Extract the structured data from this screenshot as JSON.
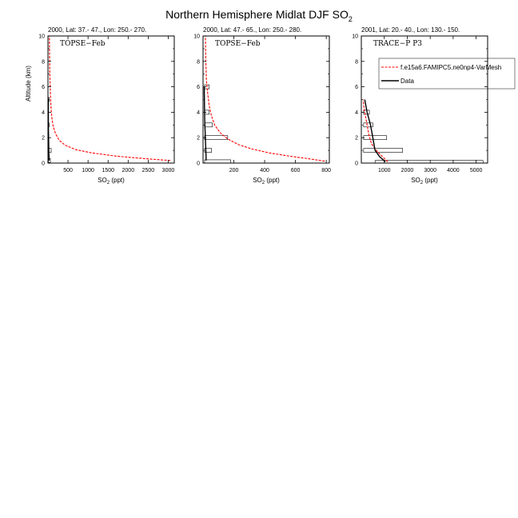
{
  "figure": {
    "title": "Northern Hemisphere Midlat DJF SO",
    "title_subscript": "2"
  },
  "chart_data": [
    {
      "type": "line",
      "subtitle": "2000, Lat: 37.- 47., Lon: 250.- 270.",
      "panel_label": "TOPSE−Feb",
      "xlabel": "SO",
      "xlabel_subscript": "2",
      "xlabel_unit": " (ppt)",
      "ylabel": "Altitude (km)",
      "xlim": [
        0,
        3150
      ],
      "ylim": [
        0,
        10
      ],
      "x_ticks": [
        500,
        1000,
        1500,
        2000,
        2500,
        3000
      ],
      "y_ticks": [
        0,
        2,
        4,
        6,
        8,
        10
      ],
      "series": [
        {
          "name": "f.e15a6.FAMIPC5.ne0np4-VarMesh",
          "color": "#ff0000",
          "style": "dashed",
          "x": [
            3050,
            2400,
            1700,
            1100,
            700,
            430,
            280,
            190,
            130,
            100,
            80,
            65,
            55,
            45,
            40,
            35
          ],
          "y": [
            0.2,
            0.35,
            0.55,
            0.8,
            1.05,
            1.4,
            1.8,
            2.3,
            2.9,
            3.5,
            4.2,
            5.0,
            6.0,
            7.0,
            8.5,
            10
          ]
        },
        {
          "name": "Data",
          "color": "#000000",
          "style": "solid",
          "x": [
            30,
            20,
            15,
            10,
            10
          ],
          "y": [
            0.2,
            1.0,
            2.0,
            3.0,
            5.0
          ]
        }
      ],
      "boxes": [
        {
          "y": 1.0,
          "x_low": 10,
          "x_high": 80
        },
        {
          "y": 0.2,
          "x_low": 10,
          "x_high": 60
        },
        {
          "y": 3.0,
          "x_low": 10,
          "x_high": 25
        },
        {
          "y": 5.0,
          "x_low": 10,
          "x_high": 20
        }
      ]
    },
    {
      "type": "line",
      "subtitle": "2000, Lat: 47.- 65., Lon: 250.- 280.",
      "panel_label": "TOPSE−Feb",
      "xlabel": "SO",
      "xlabel_subscript": "2",
      "xlabel_unit": " (ppt)",
      "ylabel": "",
      "xlim": [
        0,
        820
      ],
      "ylim": [
        0,
        10
      ],
      "x_ticks": [
        200,
        400,
        600,
        800
      ],
      "y_ticks": [
        0,
        2,
        4,
        6,
        8,
        10
      ],
      "series": [
        {
          "name": "f.e15a6.FAMIPC5.ne0np4-VarMesh",
          "color": "#ff0000",
          "style": "dashed",
          "x": [
            790,
            680,
            560,
            430,
            320,
            230,
            160,
            110,
            75,
            55,
            40,
            30,
            22,
            18,
            15
          ],
          "y": [
            0.15,
            0.35,
            0.55,
            0.8,
            1.1,
            1.45,
            1.9,
            2.4,
            3.0,
            3.7,
            4.5,
            5.5,
            6.5,
            8.0,
            10
          ]
        },
        {
          "name": "Data",
          "color": "#000000",
          "style": "solid",
          "x": [
            20,
            18,
            15,
            12,
            10,
            8
          ],
          "y": [
            0.2,
            1.0,
            2.0,
            3.0,
            4.0,
            6.0
          ]
        }
      ],
      "boxes": [
        {
          "y": 2.0,
          "x_low": 10,
          "x_high": 160
        },
        {
          "y": 3.0,
          "x_low": 10,
          "x_high": 60
        },
        {
          "y": 1.0,
          "x_low": 10,
          "x_high": 55
        },
        {
          "y": 4.0,
          "x_low": 10,
          "x_high": 40
        },
        {
          "y": 6.0,
          "x_low": 10,
          "x_high": 40
        },
        {
          "y": 0.1,
          "x_low": 10,
          "x_high": 180
        }
      ]
    },
    {
      "type": "line",
      "subtitle": "2001, Lat: 20.- 40., Lon: 130.- 150.",
      "panel_label": "TRACE−P P3",
      "xlabel": "SO",
      "xlabel_subscript": "2",
      "xlabel_unit": " (ppt)",
      "ylabel": "",
      "xlim": [
        0,
        5500
      ],
      "ylim": [
        0,
        10
      ],
      "x_ticks": [
        1000,
        2000,
        3000,
        4000,
        5000
      ],
      "y_ticks": [
        0,
        2,
        4,
        6,
        8,
        10
      ],
      "legend": {
        "position": "top-right",
        "entries": [
          "f.e15a6.FAMIPC5.ne0np4-VarMesh",
          "Data"
        ]
      },
      "series": [
        {
          "name": "f.e15a6.FAMIPC5.ne0np4-VarMesh",
          "color": "#ff0000",
          "style": "dashed",
          "x": [
            1150,
            950,
            700,
            450,
            330,
            250,
            180,
            120,
            80
          ],
          "y": [
            0.1,
            0.45,
            0.9,
            1.5,
            2.2,
            3.0,
            3.7,
            4.3,
            5.0
          ]
        },
        {
          "name": "Data",
          "color": "#000000",
          "style": "solid",
          "x": [
            1050,
            800,
            600,
            500,
            400,
            250,
            150
          ],
          "y": [
            0.1,
            0.5,
            1.0,
            2.0,
            3.0,
            4.0,
            5.0
          ]
        }
      ],
      "boxes": [
        {
          "y": 1.0,
          "x_low": 100,
          "x_high": 1800
        },
        {
          "y": 2.0,
          "x_low": 100,
          "x_high": 1100
        },
        {
          "y": 3.0,
          "x_low": 100,
          "x_high": 500
        },
        {
          "y": 4.0,
          "x_low": 100,
          "x_high": 350
        },
        {
          "y": 0.05,
          "x_low": 600,
          "x_high": 5300
        }
      ]
    }
  ]
}
